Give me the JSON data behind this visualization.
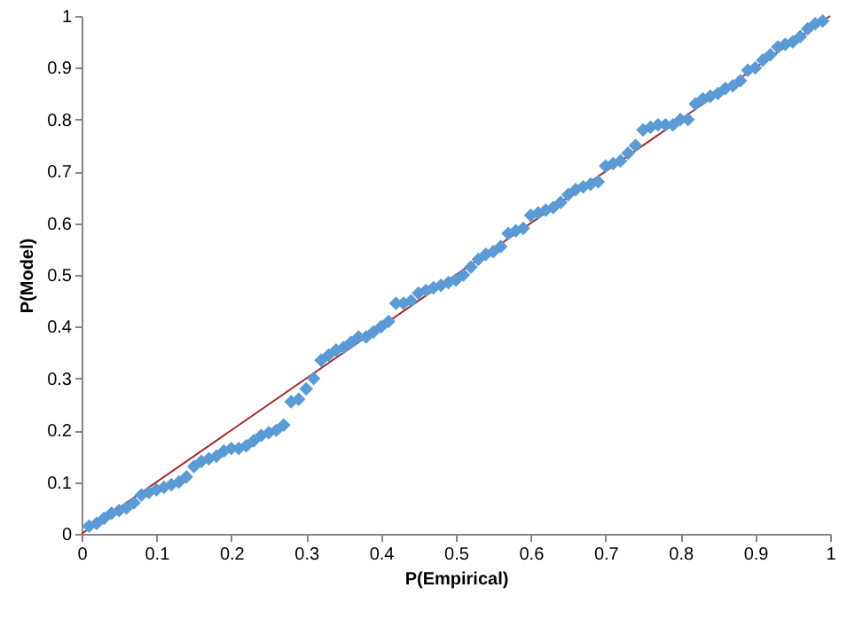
{
  "chart_data": {
    "type": "scatter",
    "xlabel": "P(Empirical)",
    "ylabel": "P(Model)",
    "xlim": [
      0,
      1
    ],
    "ylim": [
      0,
      1
    ],
    "xticks": [
      0,
      0.1,
      0.2,
      0.3,
      0.4,
      0.5,
      0.6,
      0.7,
      0.8,
      0.9,
      {
        "value": 1,
        "label": "1"
      }
    ],
    "yticks": [
      0,
      0.1,
      0.2,
      0.3,
      0.4,
      0.5,
      0.6,
      0.7,
      0.8,
      0.9,
      {
        "value": 1,
        "label": "1"
      }
    ],
    "grid": false,
    "legend": false,
    "series": [
      {
        "color": "#5b9bd5",
        "marker": "diamond",
        "x": [
          0.01,
          0.02,
          0.03,
          0.04,
          0.05,
          0.06,
          0.07,
          0.08,
          0.09,
          0.1,
          0.11,
          0.12,
          0.13,
          0.14,
          0.15,
          0.16,
          0.17,
          0.18,
          0.19,
          0.2,
          0.21,
          0.22,
          0.23,
          0.24,
          0.25,
          0.26,
          0.27,
          0.28,
          0.29,
          0.3,
          0.31,
          0.32,
          0.33,
          0.34,
          0.35,
          0.36,
          0.37,
          0.38,
          0.39,
          0.4,
          0.41,
          0.42,
          0.43,
          0.44,
          0.45,
          0.46,
          0.47,
          0.48,
          0.49,
          0.5,
          0.51,
          0.52,
          0.53,
          0.54,
          0.55,
          0.56,
          0.57,
          0.58,
          0.59,
          0.6,
          0.61,
          0.62,
          0.63,
          0.64,
          0.65,
          0.66,
          0.67,
          0.68,
          0.69,
          0.7,
          0.71,
          0.72,
          0.73,
          0.74,
          0.75,
          0.76,
          0.77,
          0.78,
          0.79,
          0.8,
          0.81,
          0.82,
          0.83,
          0.84,
          0.85,
          0.86,
          0.87,
          0.88,
          0.89,
          0.9,
          0.91,
          0.92,
          0.93,
          0.94,
          0.95,
          0.96,
          0.97,
          0.98,
          0.99
        ],
        "values": [
          0.015,
          0.02,
          0.03,
          0.04,
          0.045,
          0.05,
          0.06,
          0.075,
          0.08,
          0.085,
          0.09,
          0.095,
          0.1,
          0.11,
          0.13,
          0.14,
          0.145,
          0.15,
          0.16,
          0.165,
          0.165,
          0.17,
          0.18,
          0.19,
          0.195,
          0.2,
          0.21,
          0.255,
          0.26,
          0.28,
          0.3,
          0.335,
          0.345,
          0.355,
          0.36,
          0.37,
          0.38,
          0.38,
          0.39,
          0.4,
          0.41,
          0.445,
          0.445,
          0.45,
          0.465,
          0.47,
          0.475,
          0.48,
          0.485,
          0.49,
          0.5,
          0.515,
          0.53,
          0.54,
          0.545,
          0.555,
          0.58,
          0.585,
          0.59,
          0.615,
          0.62,
          0.625,
          0.63,
          0.64,
          0.655,
          0.665,
          0.67,
          0.675,
          0.68,
          0.71,
          0.715,
          0.72,
          0.735,
          0.75,
          0.78,
          0.785,
          0.79,
          0.79,
          0.79,
          0.8,
          0.8,
          0.83,
          0.84,
          0.845,
          0.85,
          0.86,
          0.865,
          0.875,
          0.895,
          0.9,
          0.915,
          0.925,
          0.94,
          0.945,
          0.95,
          0.96,
          0.975,
          0.985,
          0.99
        ]
      },
      {
        "type": "line",
        "color": "#a0282c",
        "x": [
          0,
          1
        ],
        "values": [
          0,
          1
        ]
      }
    ]
  }
}
